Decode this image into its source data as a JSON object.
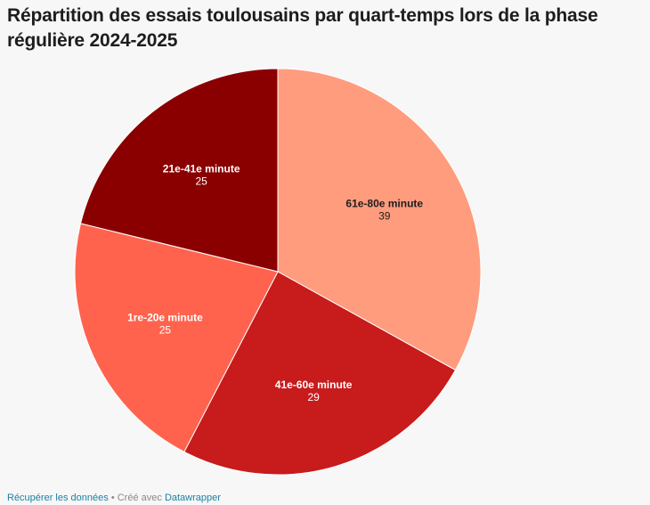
{
  "title": "Répartition des essais toulousains par quart-temps lors de la phase régulière 2024-2025",
  "chart_data": {
    "type": "pie",
    "title": "Répartition des essais toulousains par quart-temps lors de la phase régulière 2024-2025",
    "slices": [
      {
        "label": "61e-80e minute",
        "value": 39,
        "color": "#ff9c7e",
        "text_color": "#1d1d1d"
      },
      {
        "label": "41e-60e minute",
        "value": 29,
        "color": "#c81b1c",
        "text_color": "#ffffff"
      },
      {
        "label": "1re-20e minute",
        "value": 25,
        "color": "#ff634d",
        "text_color": "#ffffff"
      },
      {
        "label": "21e-41e minute",
        "value": 25,
        "color": "#8a0000",
        "text_color": "#ffffff"
      }
    ]
  },
  "footer": {
    "get_data": "Récupérer les données",
    "separator": "•",
    "created_with": "Créé avec",
    "tool": "Datawrapper"
  }
}
